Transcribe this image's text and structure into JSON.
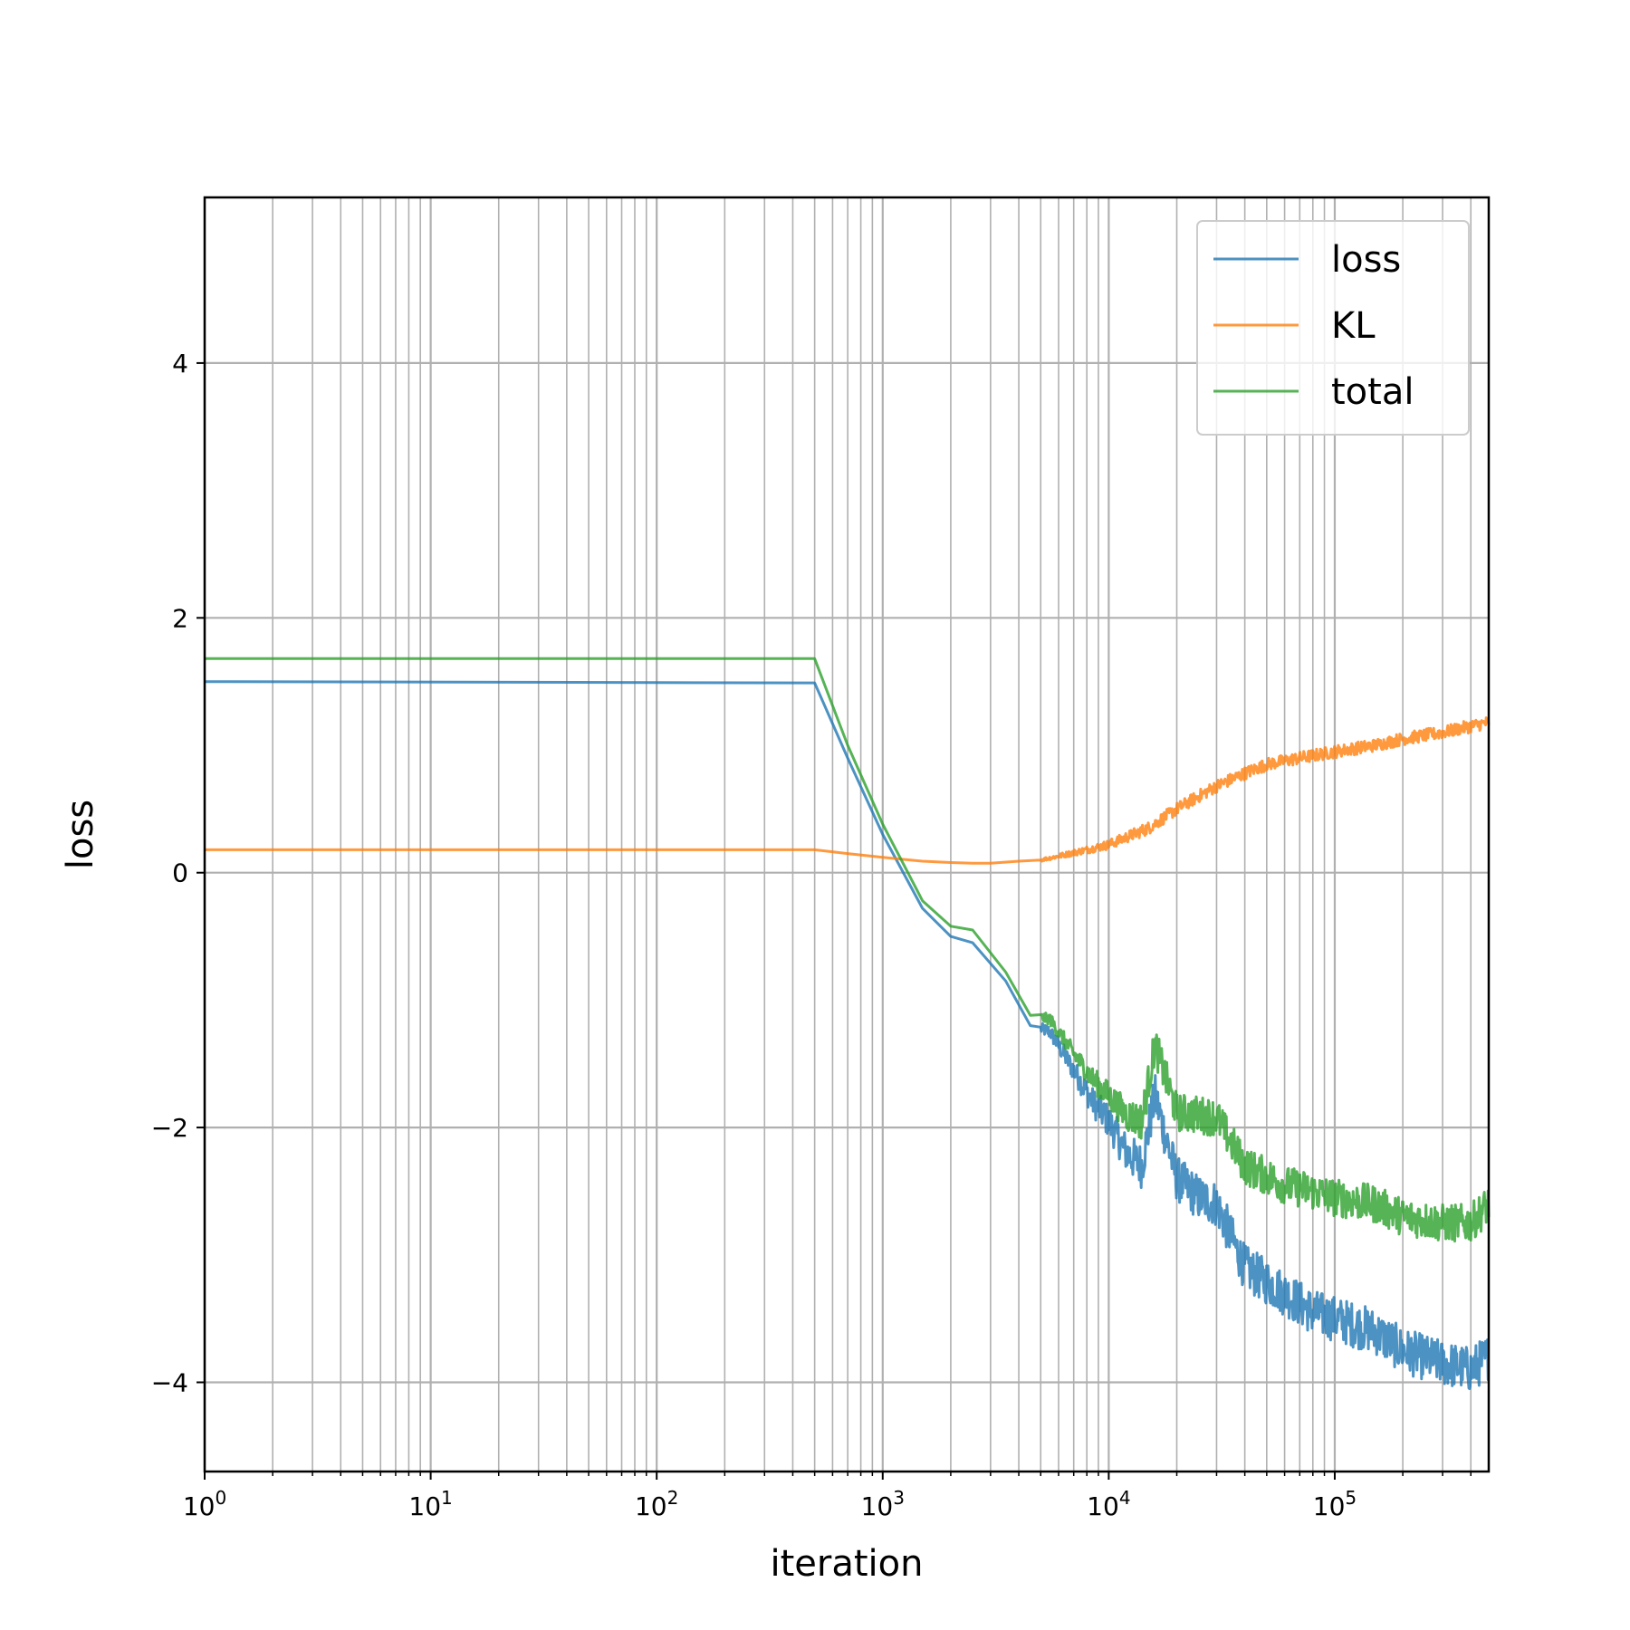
{
  "chart_data": {
    "type": "line",
    "title": "",
    "xlabel": "iteration",
    "ylabel": "loss",
    "xscale": "log",
    "xlim": [
      1,
      480000
    ],
    "ylim": [
      -4.7,
      5.3
    ],
    "grid": true,
    "grid_minor_x": true,
    "legend_position": "top-right",
    "x_ticks": [
      {
        "base": "10",
        "exp": "0",
        "value": 1
      },
      {
        "base": "10",
        "exp": "1",
        "value": 10
      },
      {
        "base": "10",
        "exp": "2",
        "value": 100
      },
      {
        "base": "10",
        "exp": "3",
        "value": 1000
      },
      {
        "base": "10",
        "exp": "4",
        "value": 10000
      },
      {
        "base": "10",
        "exp": "5",
        "value": 100000
      }
    ],
    "y_ticks": [
      {
        "label": "−4",
        "value": -4
      },
      {
        "label": "−2",
        "value": -2
      },
      {
        "label": "0",
        "value": 0
      },
      {
        "label": "2",
        "value": 2
      },
      {
        "label": "4",
        "value": 4
      }
    ],
    "series": [
      {
        "name": "loss",
        "color": "#1f77b4",
        "noise": 0.18,
        "x": [
          1,
          500,
          700,
          1000,
          1500,
          2000,
          2500,
          3500,
          4500,
          5500,
          7000,
          8500,
          10000,
          12000,
          14000,
          16000,
          20000,
          25000,
          30000,
          40000,
          60000,
          80000,
          100000,
          150000,
          200000,
          300000,
          400000,
          480000
        ],
        "y": [
          1.5,
          1.49,
          0.9,
          0.3,
          -0.28,
          -0.5,
          -0.55,
          -0.85,
          -1.2,
          -1.25,
          -1.55,
          -1.8,
          -1.95,
          -2.2,
          -2.3,
          -1.75,
          -2.4,
          -2.55,
          -2.6,
          -3.1,
          -3.3,
          -3.45,
          -3.5,
          -3.6,
          -3.75,
          -3.85,
          -3.9,
          -3.8
        ]
      },
      {
        "name": "KL",
        "color": "#ff7f0e",
        "noise": 0.05,
        "x": [
          1,
          500,
          700,
          1000,
          1500,
          2000,
          2500,
          3000,
          4000,
          5000,
          6000,
          8000,
          10000,
          15000,
          20000,
          25000,
          30000,
          40000,
          50000,
          70000,
          100000,
          150000,
          200000,
          300000,
          400000,
          480000
        ],
        "y": [
          0.18,
          0.18,
          0.15,
          0.12,
          0.09,
          0.08,
          0.075,
          0.075,
          0.09,
          0.1,
          0.13,
          0.18,
          0.22,
          0.35,
          0.5,
          0.6,
          0.68,
          0.78,
          0.85,
          0.9,
          0.95,
          1.0,
          1.05,
          1.1,
          1.15,
          1.18
        ]
      },
      {
        "name": "total",
        "color": "#2ca02c",
        "noise": 0.15,
        "x": [
          1,
          500,
          700,
          1000,
          1500,
          2000,
          2500,
          3500,
          4500,
          5500,
          7000,
          8500,
          10000,
          12000,
          14000,
          16000,
          20000,
          25000,
          30000,
          40000,
          60000,
          80000,
          100000,
          150000,
          200000,
          300000,
          400000,
          480000
        ],
        "y": [
          1.68,
          1.68,
          1.0,
          0.38,
          -0.22,
          -0.42,
          -0.45,
          -0.78,
          -1.12,
          -1.15,
          -1.42,
          -1.62,
          -1.75,
          -1.9,
          -1.95,
          -1.35,
          -1.88,
          -1.9,
          -1.92,
          -2.3,
          -2.45,
          -2.5,
          -2.55,
          -2.6,
          -2.7,
          -2.75,
          -2.75,
          -2.6
        ]
      }
    ]
  }
}
